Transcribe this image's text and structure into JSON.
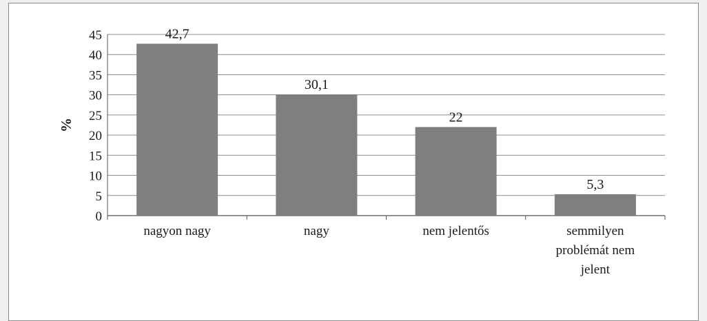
{
  "chart_data": {
    "type": "bar",
    "title": "",
    "xlabel": "",
    "ylabel": "%",
    "ylim": [
      0,
      45
    ],
    "yticks": [
      0,
      5,
      10,
      15,
      20,
      25,
      30,
      35,
      40,
      45
    ],
    "grid": true,
    "legend": "none",
    "bar_color": "#7f7f80",
    "categories": [
      [
        "nagyon nagy"
      ],
      [
        "nagy"
      ],
      [
        "nem jelentős"
      ],
      [
        "semmilyen",
        "problémát nem",
        "jelent"
      ]
    ],
    "values": [
      42.7,
      30.1,
      22,
      5.3
    ],
    "value_labels": [
      "42,7",
      "30,1",
      "22",
      "5,3"
    ]
  }
}
